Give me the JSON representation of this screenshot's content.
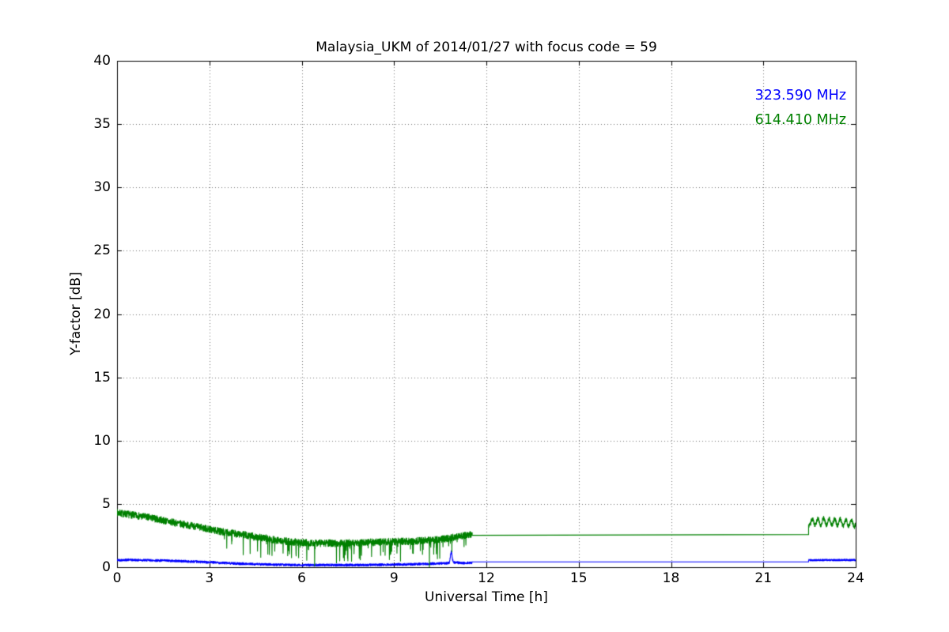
{
  "chart_data": {
    "type": "line",
    "title": "Malaysia_UKM of 2014/01/27 with focus code = 59",
    "xlabel": "Universal Time [h]",
    "ylabel": "Y-factor [dB]",
    "xlim": [
      0,
      24
    ],
    "ylim": [
      0,
      40
    ],
    "xticks": [
      0,
      3,
      6,
      9,
      12,
      15,
      18,
      21,
      24
    ],
    "yticks": [
      0,
      5,
      10,
      15,
      20,
      25,
      30,
      35,
      40
    ],
    "grid": true,
    "grid_style": "dotted",
    "legend_position": "upper right",
    "axis_color": "#000000",
    "background_color": "#ffffff",
    "series": [
      {
        "name": "323.590 MHz",
        "color": "#0000ff",
        "seed": 42,
        "segments": [
          {
            "type": "noisy",
            "t_start": 0,
            "t_end": 11.54,
            "dt": 0.005,
            "noise": 0.09,
            "keypoints": [
              [
                0,
                0.56
              ],
              [
                0.4,
                0.58
              ],
              [
                0.8,
                0.56
              ],
              [
                1.2,
                0.54
              ],
              [
                1.6,
                0.52
              ],
              [
                2.0,
                0.49
              ],
              [
                2.4,
                0.45
              ],
              [
                2.8,
                0.41
              ],
              [
                3.2,
                0.37
              ],
              [
                3.6,
                0.32
              ],
              [
                4.0,
                0.28
              ],
              [
                4.4,
                0.25
              ],
              [
                4.8,
                0.22
              ],
              [
                5.2,
                0.2
              ],
              [
                5.6,
                0.18
              ],
              [
                6.0,
                0.17
              ],
              [
                7.0,
                0.17
              ],
              [
                7.5,
                0.17
              ],
              [
                8.0,
                0.18
              ],
              [
                8.5,
                0.19
              ],
              [
                9.0,
                0.21
              ],
              [
                9.5,
                0.23
              ],
              [
                10.0,
                0.26
              ],
              [
                10.4,
                0.29
              ],
              [
                10.7,
                0.31
              ],
              [
                10.8,
                0.35
              ],
              [
                10.84,
                1.05
              ],
              [
                10.87,
                1.28
              ],
              [
                10.9,
                0.6
              ],
              [
                10.95,
                0.38
              ],
              [
                11.2,
                0.33
              ],
              [
                11.4,
                0.34
              ],
              [
                11.54,
                0.35
              ]
            ]
          },
          {
            "type": "line",
            "points": [
              [
                11.54,
                0.42
              ],
              [
                22.47,
                0.42
              ]
            ]
          },
          {
            "type": "noisy",
            "t_start": 22.47,
            "t_end": 24,
            "dt": 0.005,
            "noise": 0.07,
            "keypoints": [
              [
                22.47,
                0.56
              ],
              [
                24,
                0.57
              ]
            ]
          }
        ]
      },
      {
        "name": "614.410 MHz",
        "color": "#008000",
        "seed": 7,
        "segments": [
          {
            "type": "noisy",
            "t_start": 0,
            "t_end": 11.54,
            "dt": 0.005,
            "noise": 0.28,
            "keypoints": [
              [
                0,
                4.3
              ],
              [
                0.3,
                4.2
              ],
              [
                0.7,
                4.05
              ],
              [
                1.0,
                3.95
              ],
              [
                1.5,
                3.7
              ],
              [
                2.0,
                3.45
              ],
              [
                2.5,
                3.25
              ],
              [
                3.0,
                3.0
              ],
              [
                3.3,
                2.85
              ],
              [
                3.7,
                2.7
              ],
              [
                4.0,
                2.6
              ],
              [
                4.3,
                2.5
              ],
              [
                4.7,
                2.35
              ],
              [
                5.0,
                2.2
              ],
              [
                5.3,
                2.1
              ],
              [
                5.7,
                2.0
              ],
              [
                6.0,
                1.95
              ],
              [
                6.5,
                1.9
              ],
              [
                7.0,
                1.9
              ],
              [
                7.5,
                1.92
              ],
              [
                8.0,
                1.95
              ],
              [
                8.5,
                2.0
              ],
              [
                9.0,
                2.02
              ],
              [
                9.5,
                2.05
              ],
              [
                10.0,
                2.1
              ],
              [
                10.4,
                2.18
              ],
              [
                10.8,
                2.3
              ],
              [
                11.1,
                2.45
              ],
              [
                11.35,
                2.55
              ],
              [
                11.54,
                2.55
              ]
            ],
            "dips": {
              "t_start": 3.3,
              "t_end": 11.4,
              "prob": 0.055,
              "max_depth": 1.5
            },
            "extra_dips": [
              [
                6.42,
                1.8
              ],
              [
                7.62,
                1.55
              ],
              [
                8.85,
                1.5
              ],
              [
                10.15,
                1.45
              ]
            ]
          },
          {
            "type": "line",
            "points": [
              [
                11.54,
                2.52
              ],
              [
                22.47,
                2.58
              ]
            ]
          },
          {
            "type": "noisy",
            "t_start": 22.47,
            "t_end": 24,
            "dt": 0.005,
            "noise": 0.18,
            "keypoints": [
              [
                22.47,
                3.55
              ],
              [
                23.0,
                3.6
              ],
              [
                23.5,
                3.55
              ],
              [
                24,
                3.45
              ]
            ],
            "wave": {
              "amp": 0.25,
              "freq": 5.5
            }
          }
        ]
      }
    ]
  }
}
